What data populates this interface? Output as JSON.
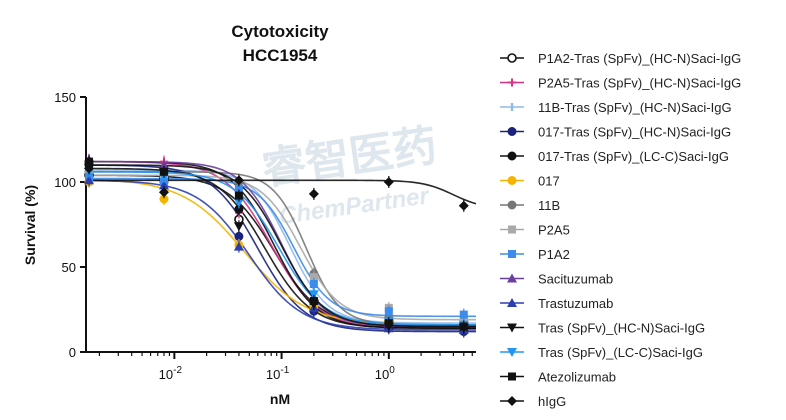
{
  "chart_data": {
    "type": "line",
    "title": "Cytotoxicity",
    "subtitle": "HCC1954",
    "xlabel": "nM",
    "ylabel": "Survival (%)",
    "x_scale": "log",
    "xlim": [
      0.0015,
      6.5
    ],
    "ylim": [
      0,
      150
    ],
    "x_ticks": [
      {
        "value": 0.01,
        "base": "10",
        "exp": "-2"
      },
      {
        "value": 0.1,
        "base": "10",
        "exp": "-1"
      },
      {
        "value": 1,
        "base": "10",
        "exp": "0"
      }
    ],
    "y_ticks": [
      0,
      50,
      100,
      150
    ],
    "grid": false,
    "legend_position": "right",
    "x": [
      0.0016,
      0.008,
      0.04,
      0.2,
      1.0,
      5.0
    ],
    "series": [
      {
        "name": "P1A2-Tras (SpFv)_(HC-N)Saci-IgG",
        "color": "#111111",
        "marker": "circle-open",
        "values": [
          104,
          102,
          78,
          30,
          18,
          16
        ],
        "top": 104,
        "bottom": 15,
        "ec50": 0.085,
        "hill": 2.0
      },
      {
        "name": "P2A5-Tras (SpFv)_(HC-N)Saci-IgG",
        "color": "#d63384",
        "marker": "plus",
        "values": [
          113,
          112,
          82,
          27,
          16,
          15
        ],
        "top": 112,
        "bottom": 14,
        "ec50": 0.08,
        "hill": 2.0
      },
      {
        "name": "11B-Tras (SpFv)_(HC-N)Saci-IgG",
        "color": "#8fb9e8",
        "marker": "line",
        "values": [
          107,
          105,
          96,
          38,
          20,
          18
        ],
        "top": 107,
        "bottom": 17,
        "ec50": 0.12,
        "hill": 2.5
      },
      {
        "name": "017-Tras (SpFv)_(HC-N)Saci-IgG",
        "color": "#1a237e",
        "marker": "circle",
        "values": [
          110,
          100,
          68,
          24,
          14,
          12
        ],
        "top": 110,
        "bottom": 12,
        "ec50": 0.06,
        "hill": 2.0
      },
      {
        "name": "017-Tras (SpFv)_(LC-C)Saci-IgG",
        "color": "#111111",
        "marker": "circle",
        "values": [
          112,
          108,
          84,
          28,
          16,
          14
        ],
        "top": 112,
        "bottom": 14,
        "ec50": 0.085,
        "hill": 2.2
      },
      {
        "name": "017",
        "color": "#f5b400",
        "marker": "circle",
        "values": [
          100,
          90,
          63,
          27,
          18,
          16
        ],
        "top": 102,
        "bottom": 16,
        "ec50": 0.045,
        "hill": 1.5
      },
      {
        "name": "11B",
        "color": "#777777",
        "marker": "circle",
        "values": [
          106,
          104,
          100,
          46,
          20,
          17
        ],
        "top": 106,
        "bottom": 16,
        "ec50": 0.17,
        "hill": 2.8
      },
      {
        "name": "P2A5",
        "color": "#aaaaaa",
        "marker": "square",
        "values": [
          104,
          102,
          92,
          44,
          26,
          20
        ],
        "top": 104,
        "bottom": 19,
        "ec50": 0.15,
        "hill": 2.4
      },
      {
        "name": "P1A2",
        "color": "#3d8bea",
        "marker": "square",
        "values": [
          103,
          100,
          96,
          40,
          24,
          22
        ],
        "top": 102,
        "bottom": 21,
        "ec50": 0.13,
        "hill": 2.6
      },
      {
        "name": "Sacituzumab",
        "color": "#6a3fa0",
        "marker": "triangle-up",
        "values": [
          113,
          110,
          92,
          32,
          17,
          15
        ],
        "top": 112,
        "bottom": 15,
        "ec50": 0.1,
        "hill": 2.3
      },
      {
        "name": "Trastuzumab",
        "color": "#2c3fb0",
        "marker": "triangle-up",
        "values": [
          101,
          98,
          62,
          26,
          14,
          13
        ],
        "top": 101,
        "bottom": 13,
        "ec50": 0.05,
        "hill": 1.8
      },
      {
        "name": "Tras (SpFv)_(HC-N)Saci-IgG",
        "color": "#111111",
        "marker": "triangle-down",
        "values": [
          108,
          106,
          74,
          28,
          15,
          14
        ],
        "top": 108,
        "bottom": 14,
        "ec50": 0.07,
        "hill": 2.0
      },
      {
        "name": "Tras (SpFv)_(LC-C)Saci-IgG",
        "color": "#2196f3",
        "marker": "triangle-down",
        "values": [
          106,
          103,
          88,
          34,
          18,
          16
        ],
        "top": 106,
        "bottom": 16,
        "ec50": 0.095,
        "hill": 2.1
      },
      {
        "name": "Atezolizumab",
        "color": "#111111",
        "marker": "square",
        "values": [
          112,
          106,
          92,
          30,
          17,
          15
        ],
        "top": 110,
        "bottom": 15,
        "ec50": 0.1,
        "hill": 2.2
      },
      {
        "name": "hIgG",
        "color": "#111111",
        "marker": "diamond",
        "values": [
          108,
          94,
          101,
          93,
          100,
          86
        ],
        "top": 101,
        "bottom": 84,
        "ec50": 4.0,
        "hill": 3.0
      }
    ],
    "watermark": {
      "cn": "睿智医药",
      "en": "ChemPartner"
    }
  }
}
